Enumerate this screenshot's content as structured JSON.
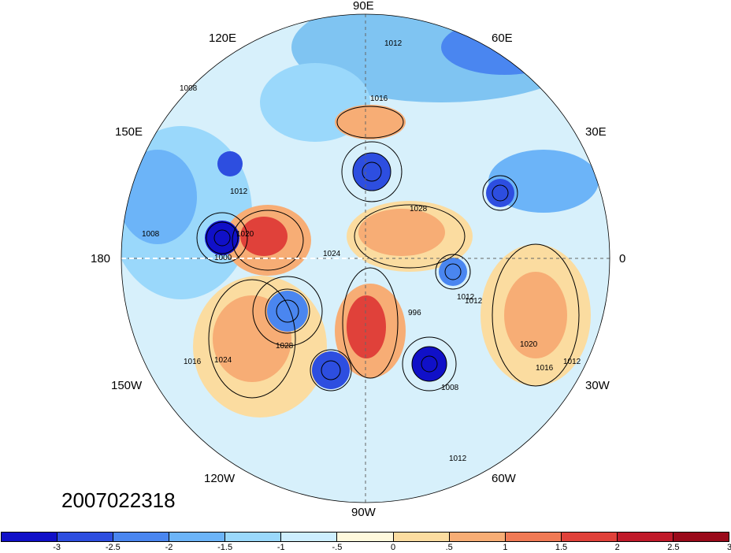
{
  "map": {
    "projection": "north polar stereographic",
    "fill_field": "anomaly shading",
    "contour_labels": [
      "1012",
      "1016",
      "1008",
      "1012",
      "1008",
      "1000",
      "1020",
      "1028",
      "1024",
      "1016",
      "1012",
      "1028",
      "996",
      "1012",
      "1008",
      "1020",
      "1016",
      "1012",
      "1012",
      "1024"
    ],
    "longitude_labels": {
      "90E": "90E",
      "60E": "60E",
      "120E": "120E",
      "150E": "150E",
      "30E": "30E",
      "180": "180",
      "0": "0",
      "150W": "150W",
      "30W": "30W",
      "120W": "120W",
      "60W": "60W",
      "90W": "90W"
    },
    "timestamp": "2007022318"
  },
  "colorbar": {
    "colors": [
      "#1010c8",
      "#2d4ee0",
      "#4a86f0",
      "#6cb4f8",
      "#9ad8fb",
      "#cdeefe",
      "#fef8dc",
      "#fbdca0",
      "#f7ad75",
      "#f07a55",
      "#e0413a",
      "#c01a2a",
      "#9a0a1a"
    ],
    "labels": [
      "-3",
      "-2.5",
      "-2",
      "-1.5",
      "-1",
      "-.5",
      "0",
      ".5",
      "1",
      "1.5",
      "2",
      "2.5",
      "3"
    ]
  }
}
